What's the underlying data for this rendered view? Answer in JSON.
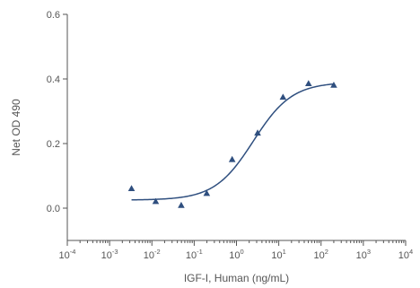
{
  "chart_data": {
    "type": "scatter",
    "xlabel": "IGF-I, Human (ng/mL)",
    "ylabel": "Net OD 490",
    "xscale": "log",
    "xlim": [
      0.0001,
      10000
    ],
    "ylim": [
      -0.1,
      0.6
    ],
    "x_ticks": [
      {
        "base": "10",
        "exp": "-4"
      },
      {
        "base": "10",
        "exp": "-3"
      },
      {
        "base": "10",
        "exp": "-2"
      },
      {
        "base": "10",
        "exp": "-1"
      },
      {
        "base": "10",
        "exp": "0"
      },
      {
        "base": "10",
        "exp": "1"
      },
      {
        "base": "10",
        "exp": "2"
      },
      {
        "base": "10",
        "exp": "3"
      },
      {
        "base": "10",
        "exp": "4"
      }
    ],
    "y_ticks": [
      "0.0",
      "0.2",
      "0.4",
      "0.6"
    ],
    "grid": false,
    "series": [
      {
        "marker": "triangle",
        "color": "#2f4f7f",
        "x": [
          0.0033,
          0.0123,
          0.0494,
          0.198,
          0.79,
          3.16,
          12.6,
          50.6,
          200
        ],
        "y": [
          0.06,
          0.02,
          0.008,
          0.045,
          0.15,
          0.232,
          0.343,
          0.385,
          0.38
        ]
      }
    ],
    "fit_curve": {
      "model": "4PL",
      "color": "#2f4f7f",
      "x_range": [
        0.0033,
        200
      ],
      "bottom": 0.025,
      "top": 0.39,
      "ec50": 2.5,
      "hill": 0.95
    }
  }
}
